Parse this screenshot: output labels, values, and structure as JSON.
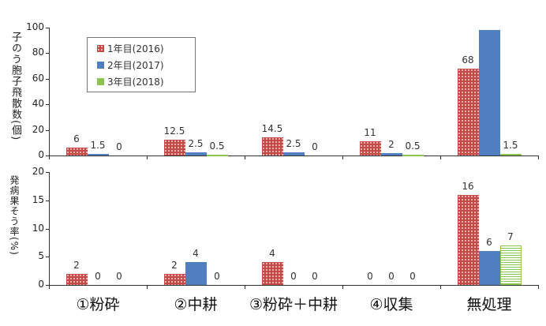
{
  "chart_data": [
    {
      "type": "bar",
      "title": "",
      "ylabel": "子のう胞子飛散数(個)",
      "xlabel": "",
      "ylim": [
        0,
        100
      ],
      "yticks": [
        0,
        20,
        40,
        60,
        80,
        100
      ],
      "categories": [
        "①粉砕",
        "②中耕",
        "③粉砕＋中耕",
        "④収集",
        "無処理"
      ],
      "legend_position": "upper-left-inside",
      "series": [
        {
          "name": "1年目(2016)",
          "values": [
            6,
            12.5,
            14.5,
            11,
            68
          ],
          "labels": [
            "6",
            "12.5",
            "14.5",
            "11",
            "68"
          ]
        },
        {
          "name": "2年目(2017)",
          "values": [
            1.5,
            2.5,
            2.5,
            2,
            98
          ],
          "labels": [
            "1.5",
            "2.5",
            "2.5",
            "2",
            ""
          ]
        },
        {
          "name": "3年目(2018)",
          "values": [
            0,
            0.5,
            0,
            0.5,
            1.5
          ],
          "labels": [
            "0",
            "0.5",
            "0",
            "0.5",
            "1.5"
          ]
        }
      ]
    },
    {
      "type": "bar",
      "title": "",
      "ylabel": "発病果そう率(%)",
      "xlabel": "",
      "ylim": [
        0,
        20
      ],
      "yticks": [
        0,
        5,
        10,
        15,
        20
      ],
      "categories": [
        "①粉砕",
        "②中耕",
        "③粉砕＋中耕",
        "④収集",
        "無処理"
      ],
      "series": [
        {
          "name": "1年目(2016)",
          "values": [
            2,
            2,
            4,
            0,
            16
          ],
          "labels": [
            "2",
            "2",
            "4",
            "0",
            "16"
          ]
        },
        {
          "name": "2年目(2017)",
          "values": [
            0,
            4,
            0,
            0,
            6
          ],
          "labels": [
            "0",
            "4",
            "0",
            "0",
            "6"
          ]
        },
        {
          "name": "3年目(2018)",
          "values": [
            0,
            0,
            0,
            0,
            7
          ],
          "labels": [
            "0",
            "0",
            "0",
            "0",
            "7"
          ]
        }
      ]
    }
  ],
  "legend": {
    "items": [
      {
        "label": "1年目(2016)",
        "color": "#c44a47"
      },
      {
        "label": "2年目(2017)",
        "color": "#4f7fbf"
      },
      {
        "label": "3年目(2018)",
        "color": "#8dc44f"
      }
    ]
  },
  "axes": {
    "top_ylabel": "子のう胞子飛散数(個)",
    "bottom_ylabel": "発病果そう率(%)"
  },
  "categories": [
    "①粉砕",
    "②中耕",
    "③粉砕＋中耕",
    "④収集",
    "無処理"
  ]
}
